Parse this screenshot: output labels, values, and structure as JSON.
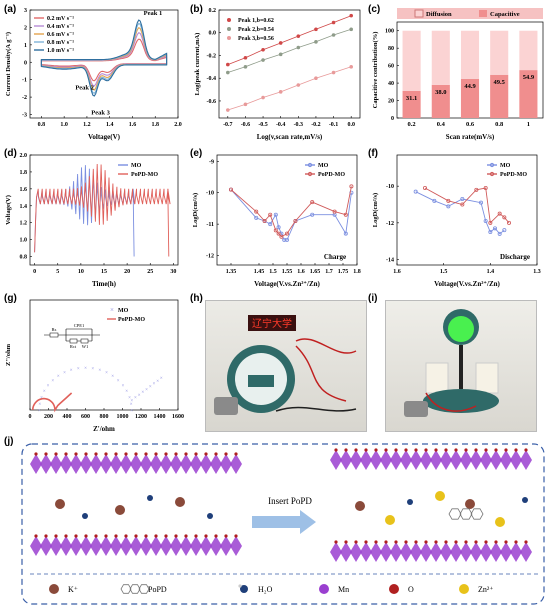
{
  "panel_letters": [
    "(a)",
    "(b)",
    "(c)",
    "(d)",
    "(e)",
    "(f)",
    "(g)",
    "(h)",
    "(i)",
    "(j)"
  ],
  "chart_data": [
    {
      "id": "a",
      "type": "line",
      "xlabel": "Voltage(V)",
      "ylabel": "Current Density(A g⁻¹)",
      "xlim": [
        0.7,
        2.0
      ],
      "ylim": [
        -3.2,
        3.0
      ],
      "xticks": [
        "0.8",
        "1.0",
        "1.2",
        "1.4",
        "1.6",
        "1.8",
        "2.0"
      ],
      "yticks": [
        "-3",
        "-2",
        "-1",
        "0",
        "1",
        "2",
        "3"
      ],
      "legend": "top-left",
      "annotations": [
        "Peak 1",
        "Peak 2",
        "Peak 3"
      ],
      "series": [
        {
          "name": "0.2 mV s⁻¹",
          "color": "#e06a6a",
          "scale": 0.55
        },
        {
          "name": "0.4 mV s⁻¹",
          "color": "#b78bd6",
          "scale": 0.7
        },
        {
          "name": "0.6 mV s⁻¹",
          "color": "#e3a44e",
          "scale": 0.82
        },
        {
          "name": "0.8 mV s⁻¹",
          "color": "#7fb3d8",
          "scale": 0.92
        },
        {
          "name": "1.0 mV s⁻¹",
          "color": "#2f6f9f",
          "scale": 1.0
        }
      ]
    },
    {
      "id": "b",
      "type": "scatter",
      "xlabel": "Log(v,scan rate,mV/s)",
      "ylabel": "Log(peak current,mA)",
      "xlim": [
        -0.75,
        0.05
      ],
      "ylim": [
        -0.75,
        0.2
      ],
      "xticks": [
        "-0.7",
        "-0.6",
        "-0.5",
        "-0.4",
        "-0.3",
        "-0.2",
        "-0.1",
        "0.0"
      ],
      "yticks": [
        "-0.6",
        "-0.4",
        "-0.2",
        "0.0",
        "0.2"
      ],
      "legend": "top-left",
      "x": [
        -0.7,
        -0.6,
        -0.5,
        -0.4,
        -0.3,
        -0.2,
        -0.1,
        0.0
      ],
      "series": [
        {
          "name": "Peak 1,b=0.62",
          "color": "#d04848",
          "values": [
            -0.28,
            -0.22,
            -0.15,
            -0.09,
            -0.03,
            0.03,
            0.09,
            0.15
          ]
        },
        {
          "name": "Peak 2,b=0.54",
          "color": "#8f9c8a",
          "values": [
            -0.35,
            -0.3,
            -0.24,
            -0.19,
            -0.13,
            -0.08,
            -0.02,
            0.03
          ]
        },
        {
          "name": "Peak 3,b=0.56",
          "color": "#e89a9a",
          "values": [
            -0.68,
            -0.63,
            -0.57,
            -0.52,
            -0.46,
            -0.4,
            -0.35,
            -0.3
          ]
        }
      ]
    },
    {
      "id": "c",
      "type": "bar",
      "xlabel": "Scan rate(mV/s)",
      "ylabel": "Capacitive contribution(%)",
      "ylim": [
        0,
        110
      ],
      "yticks": [
        "0",
        "20",
        "40",
        "60",
        "80",
        "100"
      ],
      "legend": "top",
      "categories": [
        "0.2",
        "0.4",
        "0.6",
        "0.8",
        "1"
      ],
      "series": [
        {
          "name": "Capacitive",
          "color": "#f08e8e",
          "values": [
            31.1,
            38.0,
            44.9,
            49.5,
            54.9
          ]
        },
        {
          "name": "Diffusion",
          "color": "#fbd3d3",
          "values": [
            68.9,
            62.0,
            55.1,
            50.5,
            45.1
          ]
        }
      ],
      "data_labels": [
        "31.1",
        "38.0",
        "44.9",
        "49.5",
        "54.9"
      ]
    },
    {
      "id": "d",
      "type": "line",
      "xlabel": "Time(h)",
      "ylabel": "Voltage(V)",
      "xlim": [
        -1,
        31
      ],
      "ylim": [
        0.7,
        2.0
      ],
      "xticks": [
        "0",
        "5",
        "10",
        "15",
        "20",
        "25",
        "30"
      ],
      "yticks": [
        "0.8",
        "1.0",
        "1.2",
        "1.4",
        "1.6",
        "1.8",
        "2.0"
      ],
      "legend": "top-right",
      "series": [
        {
          "name": "MO",
          "color": "#7b8fe0",
          "end": 21.5,
          "peak": 10.5
        },
        {
          "name": "PoPD-MO",
          "color": "#e0605a",
          "end": 29.0,
          "peak": 13.5
        }
      ]
    },
    {
      "id": "e",
      "type": "line",
      "xlabel": "Voltage(V.vs.Zn²⁺/Zn)",
      "ylabel": "LogD(cm²/s)",
      "xlim": [
        1.3,
        1.8
      ],
      "ylim": [
        -12.3,
        -8.8
      ],
      "xticks": [
        "1.35",
        "1.45",
        "1.5",
        "1.55",
        "1.6",
        "1.65",
        "1.7",
        "1.75",
        "1.8"
      ],
      "yticks": [
        "-12",
        "-11",
        "-10",
        "-9"
      ],
      "legend": "top-right",
      "annotations": [
        "Charge"
      ],
      "series": [
        {
          "name": "MO",
          "color": "#7b8fe0",
          "x": [
            1.35,
            1.44,
            1.47,
            1.49,
            1.51,
            1.52,
            1.53,
            1.54,
            1.55,
            1.58,
            1.64,
            1.72,
            1.76,
            1.78
          ],
          "values": [
            -9.9,
            -10.8,
            -10.9,
            -11.0,
            -10.7,
            -11.1,
            -11.3,
            -11.5,
            -11.5,
            -10.9,
            -10.7,
            -10.7,
            -11.3,
            -10.0
          ]
        },
        {
          "name": "PoPD-MO",
          "color": "#d05a5a",
          "x": [
            1.35,
            1.44,
            1.47,
            1.49,
            1.51,
            1.52,
            1.53,
            1.55,
            1.58,
            1.64,
            1.72,
            1.76,
            1.78
          ],
          "values": [
            -9.9,
            -10.6,
            -10.9,
            -10.7,
            -11.2,
            -11.3,
            -11.4,
            -11.3,
            -10.9,
            -10.3,
            -10.6,
            -10.7,
            -9.8
          ]
        }
      ]
    },
    {
      "id": "f",
      "type": "line",
      "xlabel": "Voltage(V.vs.Zn²⁺/Zn)",
      "ylabel": "LogD(cm²/s)",
      "xlim": [
        1.6,
        1.3
      ],
      "ylim": [
        -14.3,
        -8.3
      ],
      "xticks": [
        "1.6",
        "1.5",
        "1.4",
        "1.3"
      ],
      "yticks": [
        "-14",
        "-12",
        "-10"
      ],
      "legend": "top-right",
      "annotations": [
        "Discharge"
      ],
      "series": [
        {
          "name": "MO",
          "color": "#7b8fe0",
          "x": [
            1.56,
            1.52,
            1.49,
            1.46,
            1.42,
            1.41,
            1.4,
            1.39,
            1.38,
            1.37
          ],
          "values": [
            -10.3,
            -10.8,
            -11.1,
            -10.7,
            -10.9,
            -11.9,
            -12.5,
            -12.3,
            -12.6,
            -12.4
          ]
        },
        {
          "name": "PoPD-MO",
          "color": "#d05a5a",
          "x": [
            1.54,
            1.49,
            1.46,
            1.43,
            1.41,
            1.4,
            1.38,
            1.37,
            1.36
          ],
          "values": [
            -10.1,
            -10.8,
            -11.0,
            -10.2,
            -10.1,
            -12.0,
            -11.5,
            -11.7,
            -12.0
          ]
        }
      ]
    },
    {
      "id": "g",
      "type": "scatter",
      "xlabel": "Z'/ohm",
      "ylabel": "Z''/ohm",
      "xlim": [
        0,
        1600
      ],
      "ylim": [
        0,
        1100
      ],
      "xticks": [
        "0",
        "200",
        "400",
        "600",
        "800",
        "1000",
        "1200",
        "1400",
        "1600"
      ],
      "legend": "top-right",
      "annotations": [
        "Rs",
        "CPE1",
        "Rct",
        "W1"
      ],
      "series": [
        {
          "name": "MO",
          "color": "#8c8ce0",
          "marker": "x"
        },
        {
          "name": "PoPD-MO",
          "color": "#e0605a",
          "marker": "line"
        }
      ]
    }
  ],
  "photo_h": {
    "sign_text": "辽宁大学"
  },
  "schematic_j": {
    "arrow_label": "Insert PoPD",
    "legend": [
      {
        "label": "K⁺",
        "icon": "k-ion-icon",
        "color": "#8a4a3a"
      },
      {
        "label": "PoPD",
        "icon": "popd-molecule-icon",
        "color": "#888888"
      },
      {
        "label": "H₂O",
        "icon": "water-molecule-icon",
        "color": "#1f3f7a"
      },
      {
        "label": "Mn",
        "icon": "mn-atom-icon",
        "color": "#9a3fd0"
      },
      {
        "label": "O",
        "icon": "o-atom-icon",
        "color": "#b02020"
      },
      {
        "label": "Zn²⁺",
        "icon": "zn-ion-icon",
        "color": "#e8c21a"
      }
    ]
  }
}
